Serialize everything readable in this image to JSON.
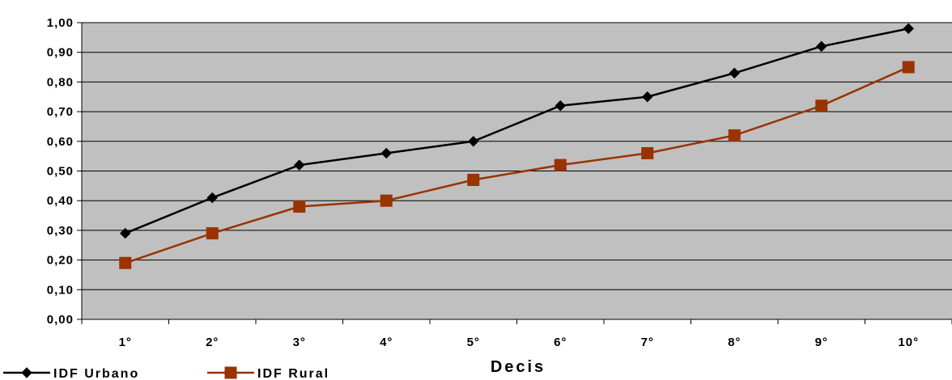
{
  "chart_data": {
    "type": "line",
    "categories": [
      "1°",
      "2°",
      "3°",
      "4°",
      "5°",
      "6°",
      "7°",
      "8°",
      "9°",
      "10°"
    ],
    "series": [
      {
        "name": "IDF Urbano",
        "values": [
          0.29,
          0.41,
          0.52,
          0.56,
          0.6,
          0.72,
          0.75,
          0.83,
          0.92,
          0.98
        ],
        "color": "#000000",
        "marker": "diamond"
      },
      {
        "name": "IDF Rural",
        "values": [
          0.19,
          0.29,
          0.38,
          0.4,
          0.47,
          0.52,
          0.56,
          0.62,
          0.72,
          0.85
        ],
        "color": "#993300",
        "marker": "square"
      }
    ],
    "yticks": [
      "0,00",
      "0,10",
      "0,20",
      "0,30",
      "0,40",
      "0,50",
      "0,60",
      "0,70",
      "0,80",
      "0,90",
      "1,00"
    ],
    "ylim": [
      0,
      1
    ],
    "xlabel": "Decis",
    "ylabel": "",
    "title": "",
    "grid": true,
    "legend": "bottom-left",
    "plot_background": "#c0c0c0"
  }
}
